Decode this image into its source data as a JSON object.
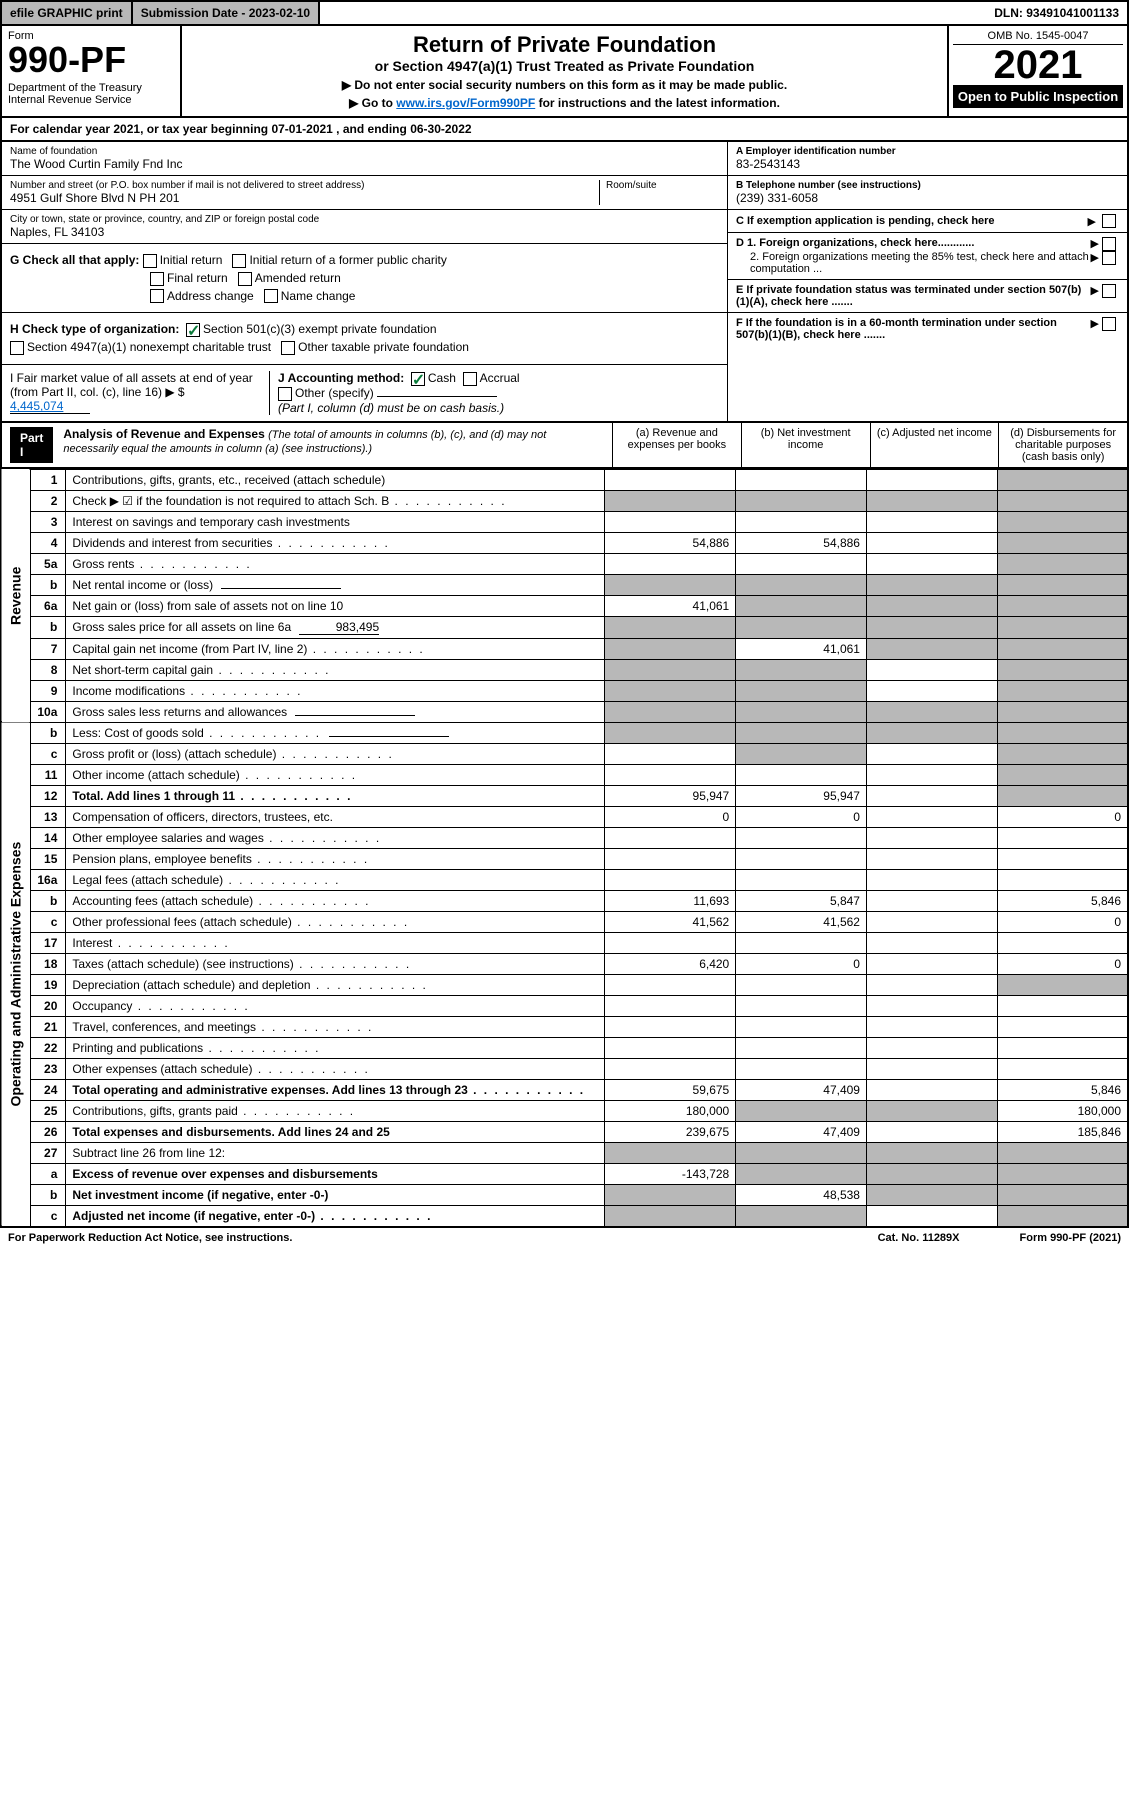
{
  "topbar": {
    "efile": "efile GRAPHIC print",
    "submission": "Submission Date - 2023-02-10",
    "dln": "DLN: 93491041001133"
  },
  "header": {
    "form": "Form",
    "formnum": "990-PF",
    "dept": "Department of the Treasury\nInternal Revenue Service",
    "title": "Return of Private Foundation",
    "subtitle": "or Section 4947(a)(1) Trust Treated as Private Foundation",
    "note1": "▶ Do not enter social security numbers on this form as it may be made public.",
    "note2_pre": "▶ Go to ",
    "note2_link": "www.irs.gov/Form990PF",
    "note2_post": " for instructions and the latest information.",
    "omb": "OMB No. 1545-0047",
    "year": "2021",
    "open": "Open to Public Inspection"
  },
  "calyear": {
    "pre": "For calendar year 2021, or tax year beginning ",
    "begin": "07-01-2021",
    "mid": " , and ending ",
    "end": "06-30-2022"
  },
  "info": {
    "name_label": "Name of foundation",
    "name": "The Wood Curtin Family Fnd Inc",
    "addr_label": "Number and street (or P.O. box number if mail is not delivered to street address)",
    "addr": "4951 Gulf Shore Blvd N PH 201",
    "room_label": "Room/suite",
    "city_label": "City or town, state or province, country, and ZIP or foreign postal code",
    "city": "Naples, FL  34103",
    "ein_label": "A Employer identification number",
    "ein": "83-2543143",
    "phone_label": "B Telephone number (see instructions)",
    "phone": "(239) 331-6058",
    "c_label": "C If exemption application is pending, check here",
    "d1_label": "D 1. Foreign organizations, check here............",
    "d2_label": "2. Foreign organizations meeting the 85% test, check here and attach computation ...",
    "e_label": "E If private foundation status was terminated under section 507(b)(1)(A), check here .......",
    "f_label": "F If the foundation is in a 60-month termination under section 507(b)(1)(B), check here .......",
    "g_label": "G Check all that apply:",
    "g_opts": [
      "Initial return",
      "Initial return of a former public charity",
      "Final return",
      "Amended return",
      "Address change",
      "Name change"
    ],
    "h_label": "H Check type of organization:",
    "h_opts": [
      "Section 501(c)(3) exempt private foundation",
      "Section 4947(a)(1) nonexempt charitable trust",
      "Other taxable private foundation"
    ],
    "i_label": "I Fair market value of all assets at end of year (from Part II, col. (c), line 16) ▶ $",
    "i_val": "4,445,074",
    "j_label": "J Accounting method:",
    "j_opts": [
      "Cash",
      "Accrual",
      "Other (specify)"
    ],
    "j_note": "(Part I, column (d) must be on cash basis.)"
  },
  "part1": {
    "label": "Part I",
    "title": "Analysis of Revenue and Expenses",
    "title_note": " (The total of amounts in columns (b), (c), and (d) may not necessarily equal the amounts in column (a) (see instructions).)",
    "cols": {
      "a": "(a) Revenue and expenses per books",
      "b": "(b) Net investment income",
      "c": "(c) Adjusted net income",
      "d": "(d) Disbursements for charitable purposes (cash basis only)"
    }
  },
  "sidelabels": {
    "revenue": "Revenue",
    "expenses": "Operating and Administrative Expenses"
  },
  "rows": [
    {
      "n": "1",
      "desc": "Contributions, gifts, grants, etc., received (attach schedule)",
      "a": "",
      "b": "",
      "c": "",
      "d": "",
      "shade_d": true
    },
    {
      "n": "2",
      "desc": "Check ▶ ☑ if the foundation is not required to attach Sch. B",
      "dots": true,
      "shade_all": true
    },
    {
      "n": "3",
      "desc": "Interest on savings and temporary cash investments",
      "a": "",
      "b": "",
      "c": "",
      "d": "",
      "shade_d": true
    },
    {
      "n": "4",
      "desc": "Dividends and interest from securities",
      "dots": true,
      "a": "54,886",
      "b": "54,886",
      "c": "",
      "d": "",
      "shade_d": true
    },
    {
      "n": "5a",
      "desc": "Gross rents",
      "dots": true,
      "a": "",
      "b": "",
      "c": "",
      "d": "",
      "shade_d": true
    },
    {
      "n": "b",
      "desc": "Net rental income or (loss)",
      "underline": true,
      "shade_all": true
    },
    {
      "n": "6a",
      "desc": "Net gain or (loss) from sale of assets not on line 10",
      "a": "41,061",
      "shade_bcd": true
    },
    {
      "n": "b",
      "desc": "Gross sales price for all assets on line 6a",
      "underline_val": "983,495",
      "shade_all": true
    },
    {
      "n": "7",
      "desc": "Capital gain net income (from Part IV, line 2)",
      "dots": true,
      "b": "41,061",
      "shade_a": true,
      "shade_cd": true
    },
    {
      "n": "8",
      "desc": "Net short-term capital gain",
      "dots": true,
      "shade_ab": true,
      "c": "",
      "shade_d": true
    },
    {
      "n": "9",
      "desc": "Income modifications",
      "dots": true,
      "shade_ab": true,
      "c": "",
      "shade_d": true
    },
    {
      "n": "10a",
      "desc": "Gross sales less returns and allowances",
      "underline": true,
      "shade_all": true
    },
    {
      "n": "b",
      "desc": "Less: Cost of goods sold",
      "dots": true,
      "underline": true,
      "shade_all": true
    },
    {
      "n": "c",
      "desc": "Gross profit or (loss) (attach schedule)",
      "dots": true,
      "a": "",
      "c": "",
      "shade_b": true,
      "shade_d": true
    },
    {
      "n": "11",
      "desc": "Other income (attach schedule)",
      "dots": true,
      "a": "",
      "b": "",
      "c": "",
      "shade_d": true
    },
    {
      "n": "12",
      "desc": "Total. Add lines 1 through 11",
      "dots": true,
      "bold": true,
      "a": "95,947",
      "b": "95,947",
      "c": "",
      "shade_d": true
    },
    {
      "n": "13",
      "desc": "Compensation of officers, directors, trustees, etc.",
      "a": "0",
      "b": "0",
      "c": "",
      "d": "0"
    },
    {
      "n": "14",
      "desc": "Other employee salaries and wages",
      "dots": true,
      "a": "",
      "b": "",
      "c": "",
      "d": ""
    },
    {
      "n": "15",
      "desc": "Pension plans, employee benefits",
      "dots": true,
      "a": "",
      "b": "",
      "c": "",
      "d": ""
    },
    {
      "n": "16a",
      "desc": "Legal fees (attach schedule)",
      "dots": true,
      "a": "",
      "b": "",
      "c": "",
      "d": ""
    },
    {
      "n": "b",
      "desc": "Accounting fees (attach schedule)",
      "dots": true,
      "a": "11,693",
      "b": "5,847",
      "c": "",
      "d": "5,846"
    },
    {
      "n": "c",
      "desc": "Other professional fees (attach schedule)",
      "dots": true,
      "a": "41,562",
      "b": "41,562",
      "c": "",
      "d": "0"
    },
    {
      "n": "17",
      "desc": "Interest",
      "dots": true,
      "a": "",
      "b": "",
      "c": "",
      "d": ""
    },
    {
      "n": "18",
      "desc": "Taxes (attach schedule) (see instructions)",
      "dots": true,
      "a": "6,420",
      "b": "0",
      "c": "",
      "d": "0"
    },
    {
      "n": "19",
      "desc": "Depreciation (attach schedule) and depletion",
      "dots": true,
      "a": "",
      "b": "",
      "c": "",
      "shade_d": true
    },
    {
      "n": "20",
      "desc": "Occupancy",
      "dots": true,
      "a": "",
      "b": "",
      "c": "",
      "d": ""
    },
    {
      "n": "21",
      "desc": "Travel, conferences, and meetings",
      "dots": true,
      "a": "",
      "b": "",
      "c": "",
      "d": ""
    },
    {
      "n": "22",
      "desc": "Printing and publications",
      "dots": true,
      "a": "",
      "b": "",
      "c": "",
      "d": ""
    },
    {
      "n": "23",
      "desc": "Other expenses (attach schedule)",
      "dots": true,
      "a": "",
      "b": "",
      "c": "",
      "d": ""
    },
    {
      "n": "24",
      "desc": "Total operating and administrative expenses. Add lines 13 through 23",
      "dots": true,
      "bold": true,
      "a": "59,675",
      "b": "47,409",
      "c": "",
      "d": "5,846"
    },
    {
      "n": "25",
      "desc": "Contributions, gifts, grants paid",
      "dots": true,
      "a": "180,000",
      "shade_bc": true,
      "d": "180,000"
    },
    {
      "n": "26",
      "desc": "Total expenses and disbursements. Add lines 24 and 25",
      "bold": true,
      "a": "239,675",
      "b": "47,409",
      "c": "",
      "d": "185,846"
    },
    {
      "n": "27",
      "desc": "Subtract line 26 from line 12:",
      "shade_all": true
    },
    {
      "n": "a",
      "desc": "Excess of revenue over expenses and disbursements",
      "bold": true,
      "a": "-143,728",
      "shade_bcd": true
    },
    {
      "n": "b",
      "desc": "Net investment income (if negative, enter -0-)",
      "bold": true,
      "shade_a": true,
      "b": "48,538",
      "shade_cd": true
    },
    {
      "n": "c",
      "desc": "Adjusted net income (if negative, enter -0-)",
      "dots": true,
      "bold": true,
      "shade_ab": true,
      "c": "",
      "shade_d": true
    }
  ],
  "footer": {
    "left": "For Paperwork Reduction Act Notice, see instructions.",
    "mid": "Cat. No. 11289X",
    "right": "Form 990-PF (2021)"
  }
}
